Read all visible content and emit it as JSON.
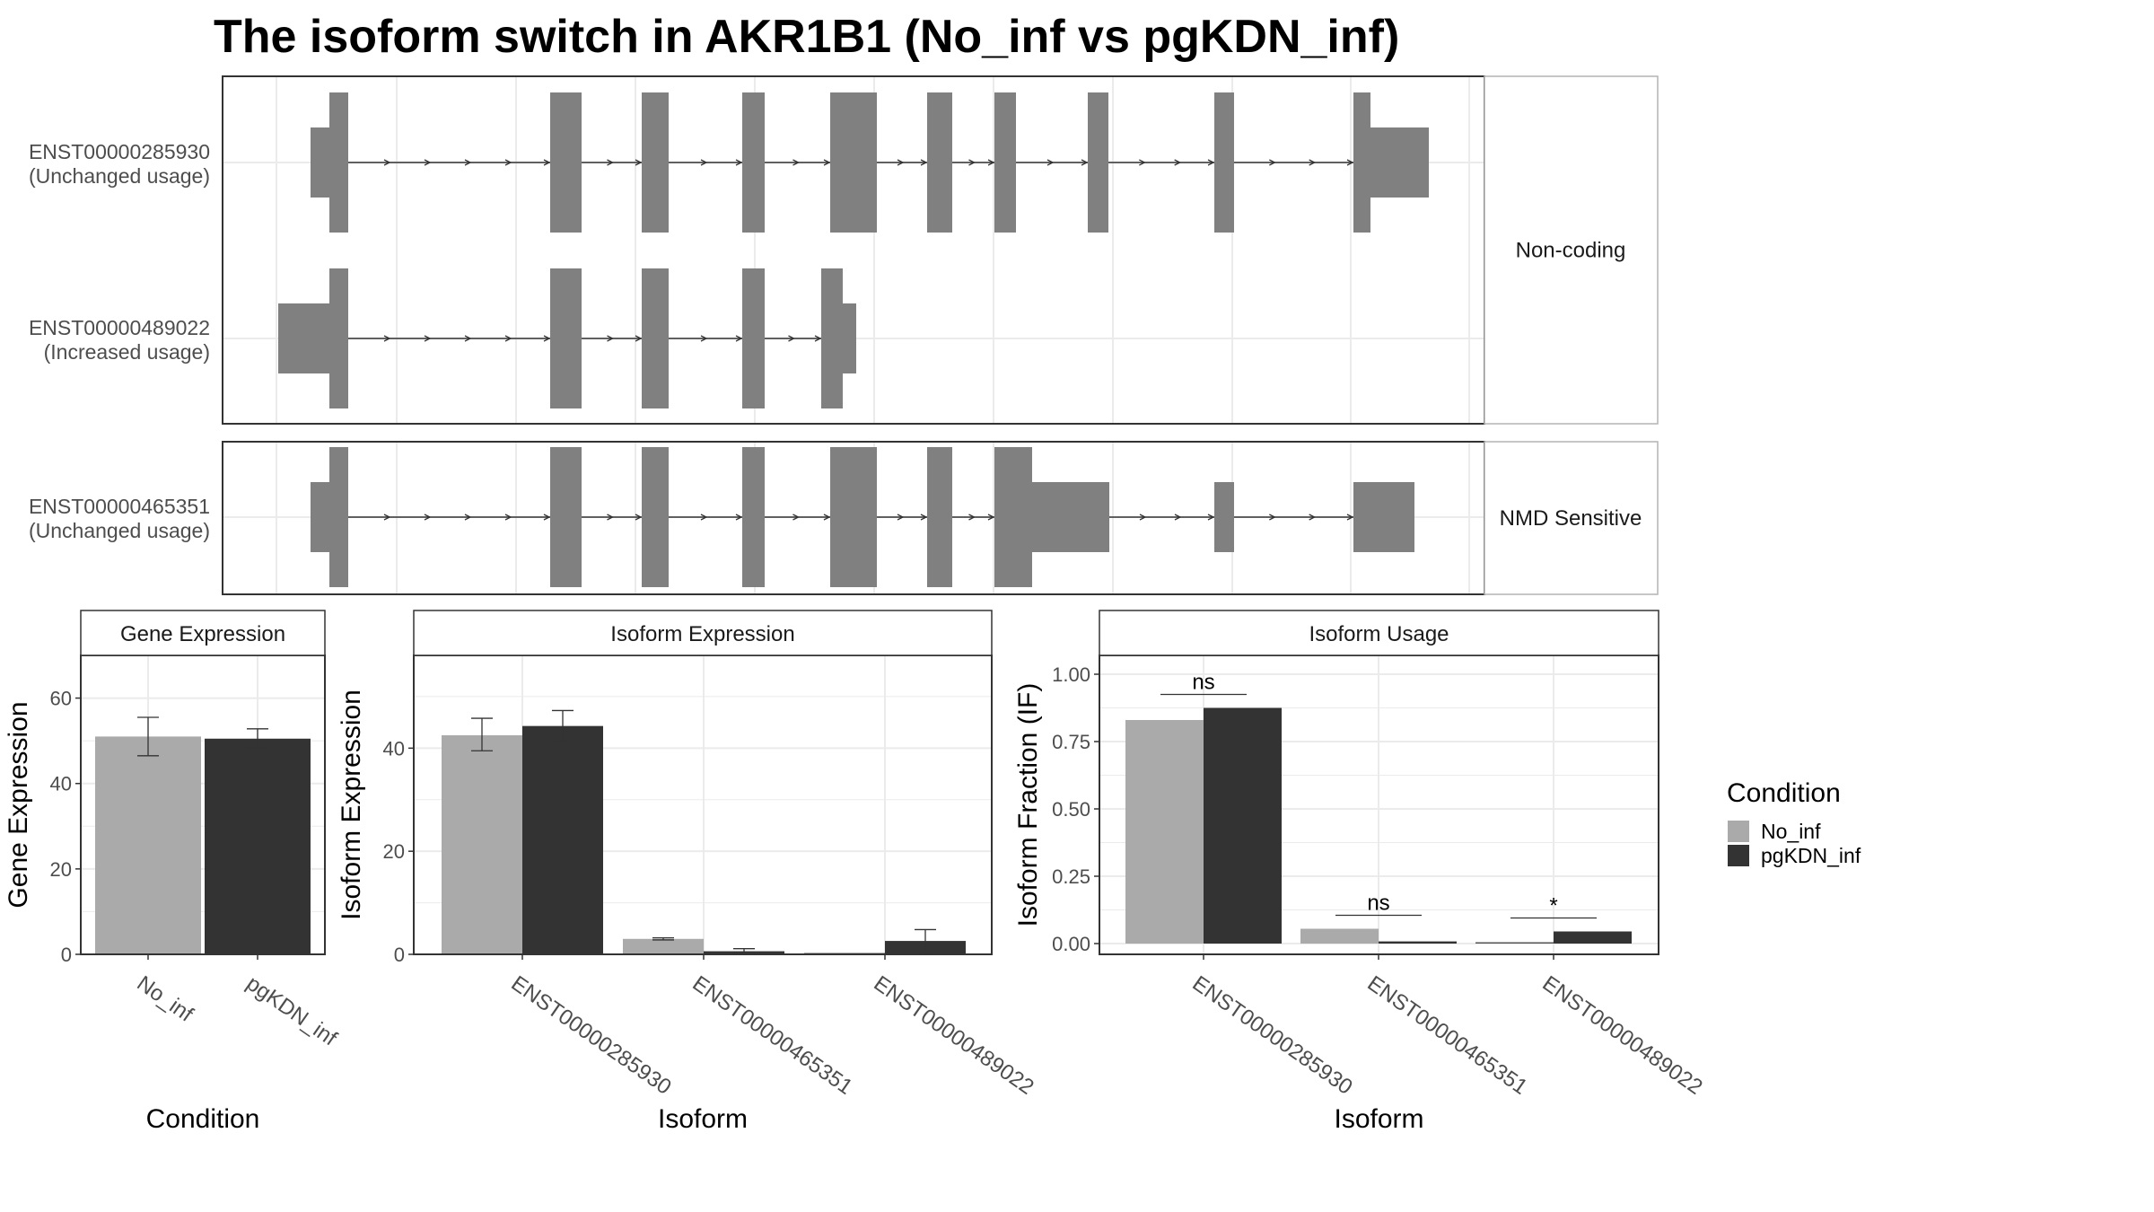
{
  "title": "The isoform switch in AKR1B1 (No_inf vs pgKDN_inf)",
  "colors": {
    "exon": "#808080",
    "no_inf": "#AAAAAA",
    "pgkdn_inf": "#333333",
    "grid": "#EBEBEB",
    "panel_border": "#333333",
    "strip_border": "#B3B3B3"
  },
  "structure": {
    "groups": [
      {
        "label": "Non-coding",
        "transcripts": [
          {
            "id": "ENST00000285930",
            "status": "(Unchanged usage)"
          },
          {
            "id": "ENST00000489022",
            "status": "(Increased usage)"
          }
        ]
      },
      {
        "label": "NMD Sensitive",
        "transcripts": [
          {
            "id": "ENST00000465351",
            "status": "(Unchanged usage)"
          }
        ]
      }
    ]
  },
  "legend": {
    "title": "Condition",
    "items": [
      {
        "label": "No_inf",
        "color": "#AAAAAA"
      },
      {
        "label": "pgKDN_inf",
        "color": "#333333"
      }
    ]
  },
  "chart_data": [
    {
      "type": "bar",
      "title": "Gene Expression",
      "xlabel": "Condition",
      "ylabel": "Gene Expression",
      "categories": [
        "No_inf",
        "pgKDN_inf"
      ],
      "values": [
        51,
        50.5
      ],
      "error": [
        [
          46.5,
          55.5
        ],
        [
          48.3,
          52.8
        ]
      ],
      "ylim": [
        0,
        70
      ],
      "yticks": [
        0,
        20,
        40,
        60
      ],
      "grid": true
    },
    {
      "type": "bar",
      "title": "Isoform Expression",
      "xlabel": "Isoform",
      "ylabel": "Isoform Expression",
      "categories": [
        "ENST00000285930",
        "ENST00000465351",
        "ENST00000489022"
      ],
      "series": [
        {
          "name": "No_inf",
          "values": [
            42.5,
            3,
            0
          ],
          "error": [
            [
              39.5,
              45.8
            ],
            [
              2.8,
              3.2
            ],
            [
              0,
              0
            ]
          ]
        },
        {
          "name": "pgKDN_inf",
          "values": [
            44.3,
            0.6,
            2.6
          ],
          "error": [
            [
              41.3,
              47.3
            ],
            [
              0.1,
              1.1
            ],
            [
              0.4,
              4.8
            ]
          ]
        }
      ],
      "ylim": [
        0,
        58
      ],
      "yticks": [
        0,
        20,
        40
      ],
      "grid": true
    },
    {
      "type": "bar",
      "title": "Isoform Usage",
      "xlabel": "Isoform",
      "ylabel": "Isoform Fraction (IF)",
      "categories": [
        "ENST00000285930",
        "ENST00000465351",
        "ENST00000489022"
      ],
      "series": [
        {
          "name": "No_inf",
          "values": [
            0.83,
            0.055,
            0
          ]
        },
        {
          "name": "pgKDN_inf",
          "values": [
            0.875,
            0.008,
            0.045
          ]
        }
      ],
      "significance": [
        "ns",
        "ns",
        "*"
      ],
      "sig_y": [
        0.925,
        0.105,
        0.095
      ],
      "ylim": [
        -0.04,
        1.07
      ],
      "yticks": [
        0,
        0.25,
        0.5,
        0.75,
        1
      ],
      "ytick_labels": [
        "0.00",
        "0.25",
        "0.50",
        "0.75",
        "1.00"
      ],
      "grid": true
    }
  ]
}
